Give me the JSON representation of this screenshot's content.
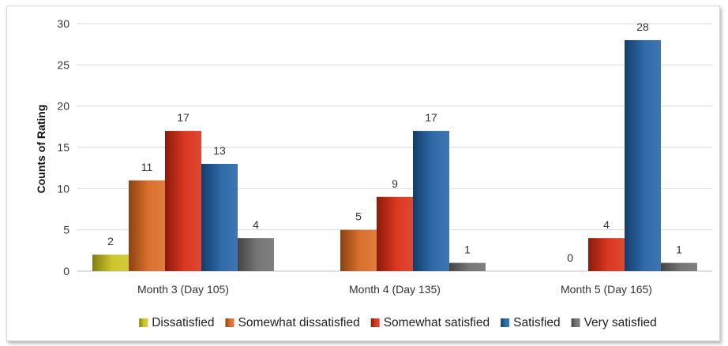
{
  "chart_data": {
    "type": "bar",
    "title": "",
    "xlabel": "",
    "ylabel": "Counts of Rating",
    "ylim": [
      0,
      30
    ],
    "yticks": [
      0,
      5,
      10,
      15,
      20,
      25,
      30
    ],
    "grid": true,
    "legend_position": "bottom",
    "categories": [
      "Month 3 (Day 105)",
      "Month 4 (Day 135)",
      "Month 5 (Day 165)"
    ],
    "series": [
      {
        "name": "Dissatisfied",
        "values": [
          2,
          0,
          0
        ],
        "color": "#c9c21a",
        "show_zero_label": [
          false,
          false,
          false
        ]
      },
      {
        "name": "Somewhat dissatisfied",
        "values": [
          11,
          5,
          0
        ],
        "color": "#d8651c",
        "show_zero_label": [
          false,
          true,
          true
        ]
      },
      {
        "name": "Somewhat satisfied",
        "values": [
          17,
          9,
          4
        ],
        "color": "#d8280f",
        "show_zero_label": [
          false,
          false,
          false
        ]
      },
      {
        "name": "Satisfied",
        "values": [
          13,
          17,
          28
        ],
        "color": "#1d5ea3",
        "show_zero_label": [
          false,
          false,
          false
        ]
      },
      {
        "name": "Very satisfied",
        "values": [
          4,
          1,
          1
        ],
        "color": "#6a6a6a",
        "show_zero_label": [
          false,
          false,
          false
        ]
      }
    ]
  }
}
